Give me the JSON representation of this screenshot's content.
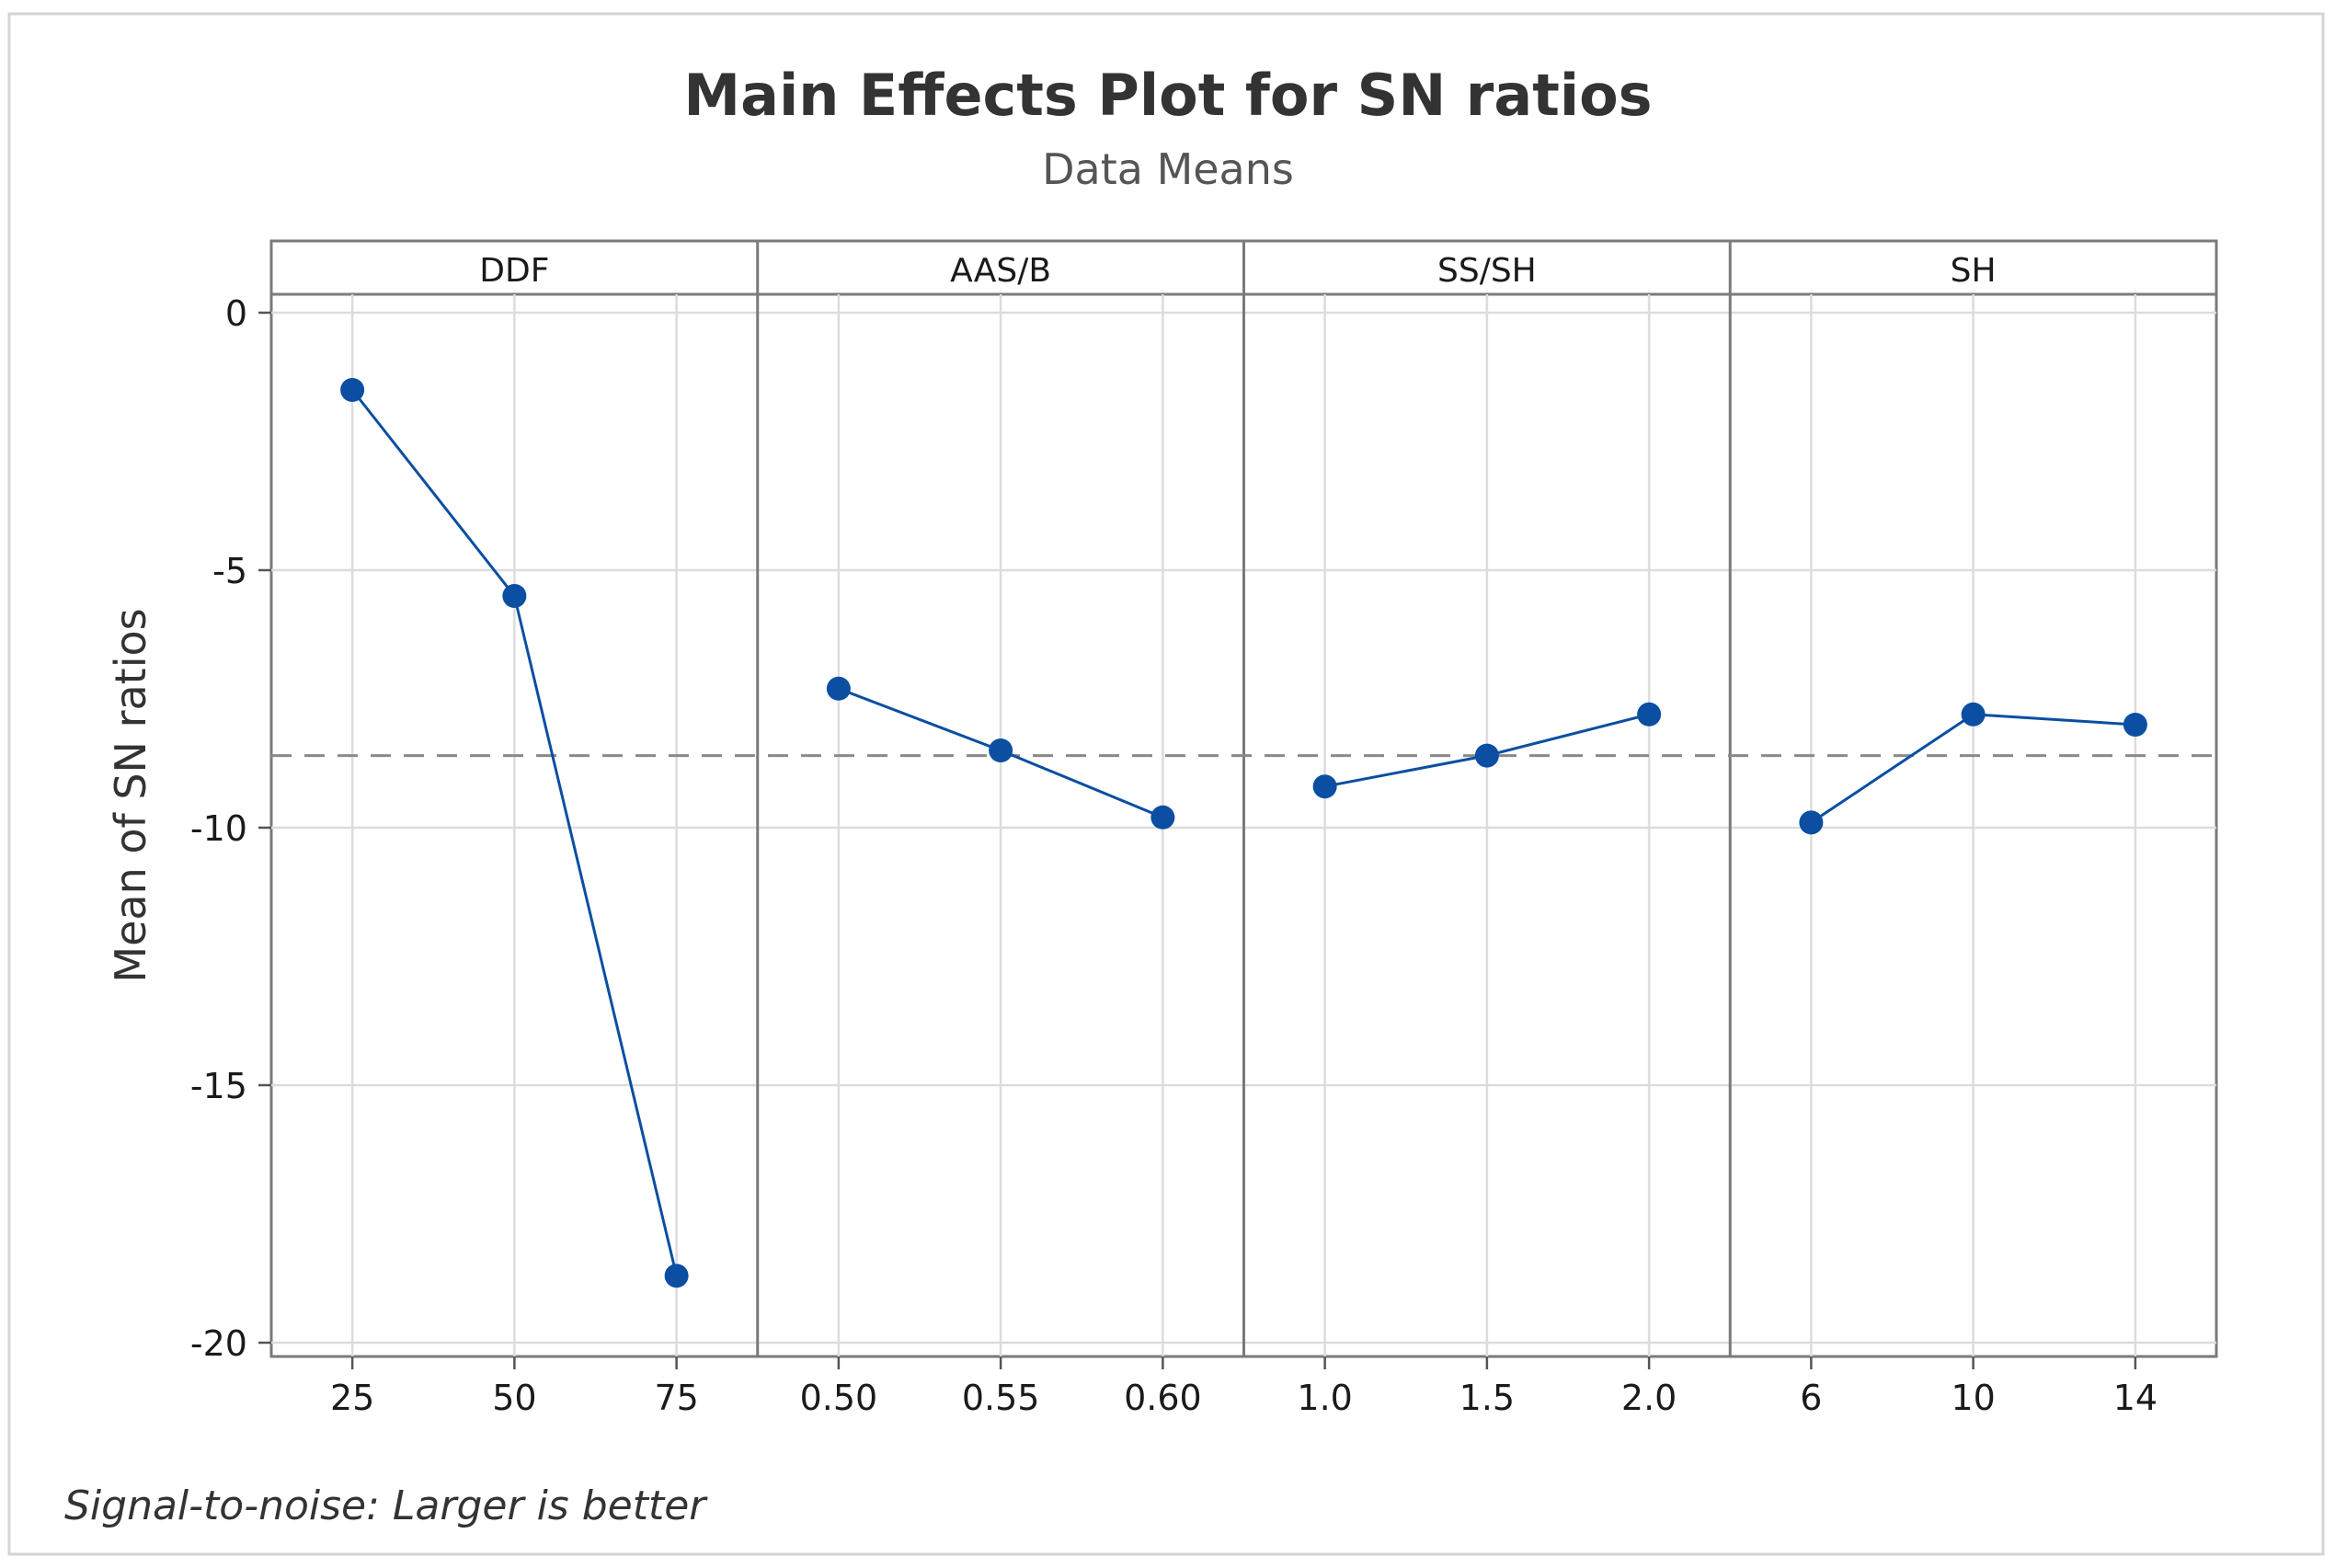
{
  "chart_data": {
    "type": "line",
    "title": "Main Effects Plot for SN ratios",
    "subtitle": "Data Means",
    "ylabel": "Mean of SN ratios",
    "ylim": [
      -20.3,
      1.0
    ],
    "yticks": [
      0,
      -5,
      -10,
      -15,
      -20
    ],
    "ytick_labels": [
      "0",
      "-5",
      "-10",
      "-15",
      "-20"
    ],
    "reference_mean": -8.6,
    "grid": true,
    "series_color": "#0b4ea2",
    "panels": [
      {
        "factor": "DDF",
        "levels": [
          "25",
          "50",
          "75"
        ],
        "values": [
          -1.5,
          -5.5,
          -18.7
        ]
      },
      {
        "factor": "AAS/B",
        "levels": [
          "0.50",
          "0.55",
          "0.60"
        ],
        "values": [
          -7.3,
          -8.5,
          -9.8
        ]
      },
      {
        "factor": "SS/SH",
        "levels": [
          "1.0",
          "1.5",
          "2.0"
        ],
        "values": [
          -9.2,
          -8.6,
          -7.8
        ]
      },
      {
        "factor": "SH",
        "levels": [
          "6",
          "10",
          "14"
        ],
        "values": [
          -9.9,
          -7.8,
          -8.0
        ]
      }
    ],
    "footnote": "Signal-to-noise: Larger is better"
  }
}
